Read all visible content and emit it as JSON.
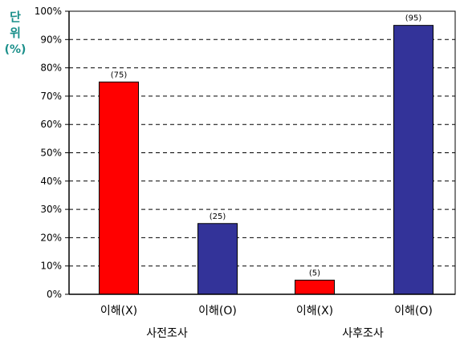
{
  "unit_label": [
    "단",
    "위",
    "(%)"
  ],
  "chart_data": {
    "type": "bar",
    "categories": [
      "이해(X)",
      "이해(O)",
      "이해(X)",
      "이해(O)"
    ],
    "groups": [
      {
        "label": "사전조사",
        "categories": [
          "이해(X)",
          "이해(O)"
        ]
      },
      {
        "label": "사후조사",
        "categories": [
          "이해(X)",
          "이해(O)"
        ]
      }
    ],
    "values": [
      75,
      25,
      5,
      95
    ],
    "data_labels": [
      "(75)",
      "(25)",
      "(5)",
      "(95)"
    ],
    "bar_colors": [
      "#ff0000",
      "#333399",
      "#ff0000",
      "#333399"
    ],
    "yticks": [
      "0%",
      "10%",
      "20%",
      "30%",
      "40%",
      "50%",
      "60%",
      "70%",
      "80%",
      "90%",
      "100%"
    ],
    "ylim": [
      0,
      100
    ],
    "ytick_step": 10,
    "grid": "dashed horizontal",
    "legend": "none",
    "title": "",
    "xlabel": "",
    "ylabel": ""
  }
}
